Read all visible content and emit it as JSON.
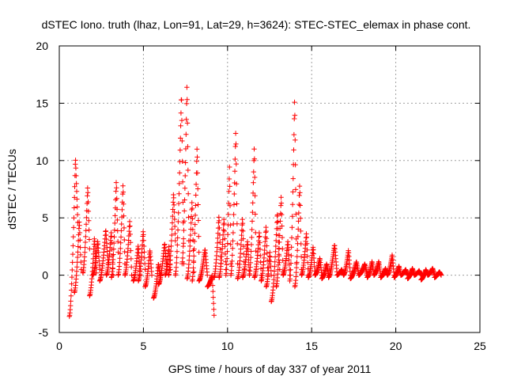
{
  "chart_data": {
    "type": "scatter",
    "title": "dSTEC Iono. truth (lhaz, Lon=91, Lat=29, h=3624): STEC-STEC_elemax in phase cont.",
    "xlabel": "GPS time / hours of day 337 of year 2011",
    "ylabel": "dSTEC  / TECUs",
    "xlim": [
      0,
      25
    ],
    "ylim": [
      -5,
      20
    ],
    "xticks": [
      "0",
      "5",
      "10",
      "15",
      "20",
      "25"
    ],
    "yticks": [
      "-5",
      "0",
      "5",
      "10",
      "15",
      "20"
    ],
    "grid": true,
    "marker": "+",
    "series": [
      {
        "color": "#ff0000",
        "arcs": [
          {
            "t0": 0.6,
            "t1": 1.1,
            "v0": -3.6,
            "vPeak": 10.3,
            "vEnd": 4.6
          },
          {
            "t0": 0.9,
            "t1": 1.3,
            "v0": -1.5,
            "vPeak": 4.8,
            "vEnd": 0.5
          },
          {
            "t0": 1.4,
            "t1": 1.8,
            "v0": 0.2,
            "vPeak": 7.8,
            "vEnd": 2.3
          },
          {
            "t0": 1.8,
            "t1": 2.2,
            "v0": -1.8,
            "vPeak": 3.3,
            "vEnd": 0.2
          },
          {
            "t0": 2.0,
            "t1": 2.4,
            "v0": 0.0,
            "vPeak": 3.0,
            "vEnd": 0.5
          },
          {
            "t0": 2.4,
            "t1": 2.9,
            "v0": -0.5,
            "vPeak": 4.0,
            "vEnd": 1.0
          },
          {
            "t0": 2.8,
            "t1": 3.2,
            "v0": 0.0,
            "vPeak": 3.8,
            "vEnd": 0.0
          },
          {
            "t0": 3.1,
            "t1": 3.5,
            "v0": -0.2,
            "vPeak": 8.3,
            "vEnd": 2.0
          },
          {
            "t0": 3.5,
            "t1": 3.9,
            "v0": 0.0,
            "vPeak": 8.0,
            "vEnd": 1.0
          },
          {
            "t0": 3.9,
            "t1": 4.3,
            "v0": 0.0,
            "vPeak": 4.8,
            "vEnd": 0.0
          },
          {
            "t0": 4.4,
            "t1": 4.8,
            "v0": -0.5,
            "vPeak": 2.6,
            "vEnd": 0.0
          },
          {
            "t0": 4.7,
            "t1": 5.1,
            "v0": -0.5,
            "vPeak": 3.9,
            "vEnd": 0.5
          },
          {
            "t0": 5.1,
            "t1": 5.5,
            "v0": -1.0,
            "vPeak": 2.2,
            "vEnd": 0.0
          },
          {
            "t0": 5.6,
            "t1": 6.0,
            "v0": -2.0,
            "vPeak": 1.0,
            "vEnd": 0.0
          },
          {
            "t0": 5.9,
            "t1": 6.4,
            "v0": -0.8,
            "vPeak": 2.8,
            "vEnd": 0.5
          },
          {
            "t0": 6.3,
            "t1": 6.6,
            "v0": 0.0,
            "vPeak": 2.5,
            "vEnd": 0.5
          },
          {
            "t0": 6.5,
            "t1": 6.9,
            "v0": 0.0,
            "vPeak": 7.2,
            "vEnd": 3.0
          },
          {
            "t0": 6.9,
            "t1": 7.4,
            "v0": 0.0,
            "vPeak": 16.0,
            "vEnd": 1.0
          },
          {
            "t0": 7.3,
            "t1": 7.7,
            "v0": 1.0,
            "vPeak": 16.8,
            "vEnd": 3.0
          },
          {
            "t0": 7.6,
            "t1": 8.0,
            "v0": -0.3,
            "vPeak": 6.5,
            "vEnd": 0.3
          },
          {
            "t0": 7.9,
            "t1": 8.3,
            "v0": -0.5,
            "vPeak": 11.3,
            "vEnd": 2.0
          },
          {
            "t0": 8.3,
            "t1": 8.8,
            "v0": -0.5,
            "vPeak": 2.3,
            "vEnd": 0.0
          },
          {
            "t0": 8.8,
            "t1": 9.2,
            "v0": -1.0,
            "vPeak": 0.0,
            "vEnd": -3.5
          },
          {
            "t0": 9.2,
            "t1": 9.6,
            "v0": -0.2,
            "vPeak": 5.2,
            "vEnd": 1.0
          },
          {
            "t0": 9.5,
            "t1": 9.9,
            "v0": -0.2,
            "vPeak": 5.0,
            "vEnd": 0.5
          },
          {
            "t0": 9.9,
            "t1": 10.2,
            "v0": 0.0,
            "vPeak": 9.5,
            "vEnd": 1.0
          },
          {
            "t0": 10.2,
            "t1": 10.6,
            "v0": 0.0,
            "vPeak": 12.7,
            "vEnd": 1.0
          },
          {
            "t0": 10.6,
            "t1": 11.0,
            "v0": -0.3,
            "vPeak": 5.0,
            "vEnd": 0.5
          },
          {
            "t0": 10.9,
            "t1": 11.3,
            "v0": -0.2,
            "vPeak": 3.0,
            "vEnd": 0.0
          },
          {
            "t0": 11.3,
            "t1": 11.7,
            "v0": 0.0,
            "vPeak": 11.3,
            "vEnd": 0.5
          },
          {
            "t0": 11.6,
            "t1": 12.0,
            "v0": -0.2,
            "vPeak": 3.8,
            "vEnd": 0.0
          },
          {
            "t0": 12.0,
            "t1": 12.4,
            "v0": -0.5,
            "vPeak": 4.3,
            "vEnd": 0.0
          },
          {
            "t0": 12.3,
            "t1": 12.6,
            "v0": -1.0,
            "vPeak": 2.0,
            "vEnd": 0.0
          },
          {
            "t0": 12.6,
            "t1": 13.1,
            "v0": -2.3,
            "vPeak": 5.5,
            "vEnd": 0.5
          },
          {
            "t0": 12.9,
            "t1": 13.3,
            "v0": -1.0,
            "vPeak": 7.0,
            "vEnd": 0.3
          },
          {
            "t0": 13.3,
            "t1": 13.7,
            "v0": 0.0,
            "vPeak": 3.0,
            "vEnd": 0.0
          },
          {
            "t0": 13.7,
            "t1": 14.1,
            "v0": -0.5,
            "vPeak": 15.5,
            "vEnd": 1.0
          },
          {
            "t0": 14.0,
            "t1": 14.4,
            "v0": -1.0,
            "vPeak": 8.0,
            "vEnd": 0.5
          },
          {
            "t0": 14.4,
            "t1": 14.8,
            "v0": 0.0,
            "vPeak": 3.7,
            "vEnd": 0.0
          },
          {
            "t0": 14.8,
            "t1": 15.2,
            "v0": -0.2,
            "vPeak": 2.5,
            "vEnd": 0.0
          },
          {
            "t0": 15.2,
            "t1": 15.6,
            "v0": 0.0,
            "vPeak": 1.5,
            "vEnd": 0.0
          },
          {
            "t0": 15.6,
            "t1": 16.0,
            "v0": -0.3,
            "vPeak": 1.0,
            "vEnd": 0.0
          },
          {
            "t0": 16.0,
            "t1": 16.5,
            "v0": -0.2,
            "vPeak": 2.7,
            "vEnd": 0.3
          },
          {
            "t0": 16.5,
            "t1": 16.9,
            "v0": 0.0,
            "vPeak": 0.5,
            "vEnd": 0.0
          },
          {
            "t0": 16.9,
            "t1": 17.3,
            "v0": 0.0,
            "vPeak": 2.2,
            "vEnd": 0.0
          },
          {
            "t0": 17.3,
            "t1": 17.8,
            "v0": -0.3,
            "vPeak": 1.2,
            "vEnd": 0.0
          },
          {
            "t0": 17.8,
            "t1": 18.3,
            "v0": 0.0,
            "vPeak": 1.0,
            "vEnd": 0.0
          },
          {
            "t0": 18.3,
            "t1": 18.7,
            "v0": -0.2,
            "vPeak": 1.2,
            "vEnd": 0.0
          },
          {
            "t0": 18.7,
            "t1": 19.1,
            "v0": 0.0,
            "vPeak": 1.2,
            "vEnd": 0.0
          },
          {
            "t0": 19.1,
            "t1": 19.5,
            "v0": -0.2,
            "vPeak": 0.6,
            "vEnd": 0.0
          },
          {
            "t0": 19.5,
            "t1": 19.9,
            "v0": 0.0,
            "vPeak": 1.8,
            "vEnd": 0.0
          },
          {
            "t0": 19.9,
            "t1": 20.3,
            "v0": -0.2,
            "vPeak": 0.8,
            "vEnd": 0.0
          },
          {
            "t0": 20.3,
            "t1": 20.7,
            "v0": 0.0,
            "vPeak": 0.5,
            "vEnd": 0.0
          },
          {
            "t0": 20.7,
            "t1": 21.1,
            "v0": -0.3,
            "vPeak": 0.6,
            "vEnd": 0.0
          },
          {
            "t0": 21.1,
            "t1": 21.5,
            "v0": 0.0,
            "vPeak": 0.4,
            "vEnd": 0.0
          },
          {
            "t0": 21.5,
            "t1": 21.9,
            "v0": -0.4,
            "vPeak": 0.5,
            "vEnd": 0.0
          },
          {
            "t0": 21.9,
            "t1": 22.3,
            "v0": 0.0,
            "vPeak": 0.6,
            "vEnd": 0.0
          },
          {
            "t0": 22.3,
            "t1": 22.7,
            "v0": -0.2,
            "vPeak": 0.3,
            "vEnd": 0.0
          }
        ]
      }
    ]
  }
}
